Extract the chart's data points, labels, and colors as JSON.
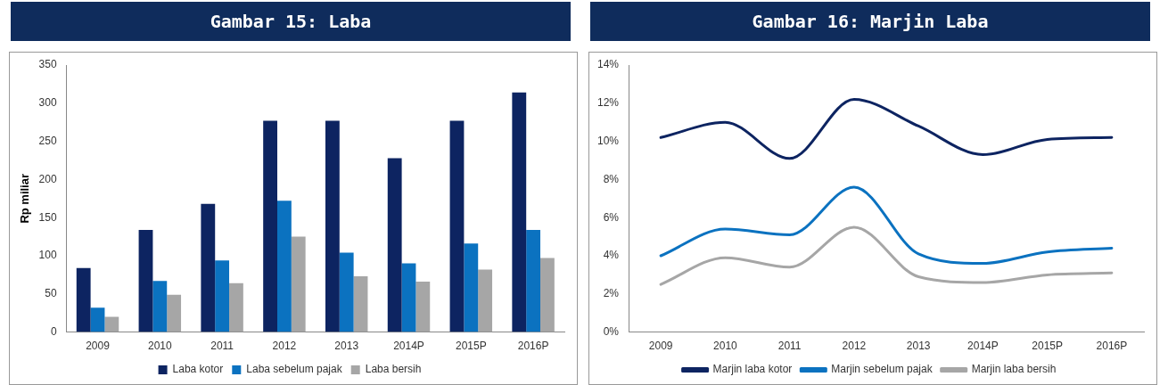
{
  "chart_data": [
    {
      "type": "bar",
      "title": "Gambar 15: Laba",
      "ylabel": "Rp miliar",
      "categories": [
        "2009",
        "2010",
        "2011",
        "2012",
        "2013",
        "2014P",
        "2015P",
        "2016P"
      ],
      "series": [
        {
          "name": "Laba kotor",
          "color": "#0d2461",
          "values": [
            84,
            134,
            168,
            277,
            277,
            228,
            277,
            314
          ]
        },
        {
          "name": "Laba sebelum pajak",
          "color": "#0b72c0",
          "values": [
            32,
            67,
            94,
            172,
            104,
            90,
            116,
            134
          ]
        },
        {
          "name": "Laba bersih",
          "color": "#a6a6a6",
          "values": [
            20,
            49,
            64,
            125,
            73,
            66,
            82,
            97
          ]
        }
      ],
      "ylim": [
        0,
        350
      ],
      "yticks": [
        0,
        50,
        100,
        150,
        200,
        250,
        300,
        350
      ],
      "grid": false,
      "legend": "bottom"
    },
    {
      "type": "line",
      "title": "Gambar 16: Marjin Laba",
      "categories": [
        "2009",
        "2010",
        "2011",
        "2012",
        "2013",
        "2014P",
        "2015P",
        "2016P"
      ],
      "series": [
        {
          "name": "Marjin laba kotor",
          "color": "#0d2461",
          "values": [
            10.2,
            11.0,
            9.1,
            12.2,
            10.8,
            9.3,
            10.1,
            10.2
          ]
        },
        {
          "name": "Marjin sebelum pajak",
          "color": "#0b72c0",
          "values": [
            4.0,
            5.4,
            5.1,
            7.6,
            4.1,
            3.6,
            4.2,
            4.4
          ]
        },
        {
          "name": "Marjin laba bersih",
          "color": "#a6a6a6",
          "values": [
            2.5,
            3.9,
            3.4,
            5.5,
            2.9,
            2.6,
            3.0,
            3.1
          ]
        }
      ],
      "ylim": [
        0,
        14
      ],
      "yticks": [
        {
          "value": 0,
          "label": "0%"
        },
        {
          "value": 2,
          "label": "2%"
        },
        {
          "value": 4,
          "label": "4%"
        },
        {
          "value": 6,
          "label": "6%"
        },
        {
          "value": 8,
          "label": "8%"
        },
        {
          "value": 10,
          "label": "10%"
        },
        {
          "value": 12,
          "label": "12%"
        },
        {
          "value": 14,
          "label": "14%"
        }
      ],
      "grid": false,
      "legend": "bottom",
      "marker": "none",
      "line_style": "solid"
    }
  ]
}
